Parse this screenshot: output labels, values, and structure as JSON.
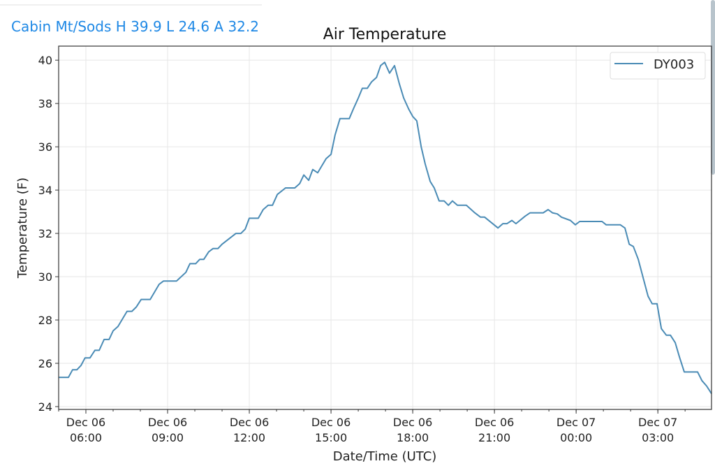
{
  "header": {
    "station_summary": "Cabin Mt/Sods H 39.9 L 24.6 A 32.2"
  },
  "chart_data": {
    "type": "line",
    "title": "Air Temperature",
    "xlabel": "Date/Time (UTC)",
    "ylabel": "Temperature (F)",
    "x_units": "hours since Dec 06 00:00 UTC",
    "xlim": [
      5.0,
      28.97
    ],
    "ylim": [
      23.87,
      40.65
    ],
    "grid": true,
    "legend_position": "top-right",
    "yticks": [
      24,
      26,
      28,
      30,
      32,
      34,
      36,
      38,
      40
    ],
    "xticks": [
      {
        "value": 6,
        "line1": "Dec 06",
        "line2": "06:00"
      },
      {
        "value": 9,
        "line1": "Dec 06",
        "line2": "09:00"
      },
      {
        "value": 12,
        "line1": "Dec 06",
        "line2": "12:00"
      },
      {
        "value": 15,
        "line1": "Dec 06",
        "line2": "15:00"
      },
      {
        "value": 18,
        "line1": "Dec 06",
        "line2": "18:00"
      },
      {
        "value": 21,
        "line1": "Dec 06",
        "line2": "21:00"
      },
      {
        "value": 24,
        "line1": "Dec 07",
        "line2": "00:00"
      },
      {
        "value": 27,
        "line1": "Dec 07",
        "line2": "03:00"
      }
    ],
    "series": [
      {
        "name": "DY003",
        "color": "#4a8bb5",
        "points": [
          [
            5.0,
            25.35
          ],
          [
            5.36,
            25.35
          ],
          [
            5.51,
            25.7
          ],
          [
            5.67,
            25.7
          ],
          [
            5.82,
            25.9
          ],
          [
            5.97,
            26.25
          ],
          [
            6.15,
            26.25
          ],
          [
            6.33,
            26.6
          ],
          [
            6.49,
            26.6
          ],
          [
            6.67,
            27.1
          ],
          [
            6.85,
            27.1
          ],
          [
            7.0,
            27.5
          ],
          [
            7.18,
            27.7
          ],
          [
            7.51,
            28.4
          ],
          [
            7.69,
            28.4
          ],
          [
            7.85,
            28.6
          ],
          [
            8.03,
            28.95
          ],
          [
            8.36,
            28.95
          ],
          [
            8.69,
            29.65
          ],
          [
            8.85,
            29.8
          ],
          [
            9.33,
            29.8
          ],
          [
            9.67,
            30.2
          ],
          [
            9.82,
            30.6
          ],
          [
            10.03,
            30.6
          ],
          [
            10.18,
            30.8
          ],
          [
            10.33,
            30.8
          ],
          [
            10.51,
            31.15
          ],
          [
            10.67,
            31.3
          ],
          [
            10.85,
            31.3
          ],
          [
            11.0,
            31.5
          ],
          [
            11.51,
            32.0
          ],
          [
            11.69,
            32.0
          ],
          [
            11.85,
            32.2
          ],
          [
            12.0,
            32.7
          ],
          [
            12.33,
            32.7
          ],
          [
            12.51,
            33.1
          ],
          [
            12.69,
            33.3
          ],
          [
            12.85,
            33.3
          ],
          [
            13.03,
            33.8
          ],
          [
            13.33,
            34.1
          ],
          [
            13.67,
            34.1
          ],
          [
            13.85,
            34.3
          ],
          [
            14.0,
            34.7
          ],
          [
            14.18,
            34.45
          ],
          [
            14.33,
            34.95
          ],
          [
            14.51,
            34.8
          ],
          [
            14.82,
            35.45
          ],
          [
            15.0,
            35.65
          ],
          [
            15.15,
            36.55
          ],
          [
            15.33,
            37.3
          ],
          [
            15.67,
            37.3
          ],
          [
            15.82,
            37.75
          ],
          [
            16.0,
            38.25
          ],
          [
            16.15,
            38.7
          ],
          [
            16.33,
            38.7
          ],
          [
            16.49,
            39.0
          ],
          [
            16.67,
            39.2
          ],
          [
            16.82,
            39.75
          ],
          [
            16.97,
            39.9
          ],
          [
            17.15,
            39.4
          ],
          [
            17.33,
            39.75
          ],
          [
            17.51,
            38.9
          ],
          [
            17.67,
            38.25
          ],
          [
            17.85,
            37.75
          ],
          [
            18.0,
            37.4
          ],
          [
            18.15,
            37.2
          ],
          [
            18.31,
            36.0
          ],
          [
            18.46,
            35.2
          ],
          [
            18.64,
            34.4
          ],
          [
            18.79,
            34.1
          ],
          [
            18.97,
            33.5
          ],
          [
            19.15,
            33.5
          ],
          [
            19.31,
            33.3
          ],
          [
            19.46,
            33.5
          ],
          [
            19.64,
            33.3
          ],
          [
            19.97,
            33.3
          ],
          [
            20.28,
            32.95
          ],
          [
            20.49,
            32.75
          ],
          [
            20.64,
            32.75
          ],
          [
            21.13,
            32.25
          ],
          [
            21.31,
            32.45
          ],
          [
            21.46,
            32.45
          ],
          [
            21.64,
            32.6
          ],
          [
            21.79,
            32.45
          ],
          [
            22.13,
            32.8
          ],
          [
            22.31,
            32.95
          ],
          [
            22.79,
            32.95
          ],
          [
            22.97,
            33.1
          ],
          [
            23.13,
            32.95
          ],
          [
            23.31,
            32.9
          ],
          [
            23.46,
            32.75
          ],
          [
            23.79,
            32.6
          ],
          [
            23.97,
            32.4
          ],
          [
            24.13,
            32.55
          ],
          [
            24.95,
            32.55
          ],
          [
            25.1,
            32.4
          ],
          [
            25.62,
            32.4
          ],
          [
            25.79,
            32.25
          ],
          [
            25.95,
            31.5
          ],
          [
            26.1,
            31.4
          ],
          [
            26.28,
            30.8
          ],
          [
            26.46,
            29.95
          ],
          [
            26.64,
            29.1
          ],
          [
            26.79,
            28.75
          ],
          [
            26.97,
            28.75
          ],
          [
            27.13,
            27.6
          ],
          [
            27.31,
            27.3
          ],
          [
            27.46,
            27.3
          ],
          [
            27.64,
            26.95
          ],
          [
            27.79,
            26.3
          ],
          [
            27.97,
            25.6
          ],
          [
            28.46,
            25.6
          ],
          [
            28.62,
            25.2
          ],
          [
            28.79,
            24.95
          ],
          [
            28.97,
            24.6
          ]
        ]
      }
    ]
  }
}
